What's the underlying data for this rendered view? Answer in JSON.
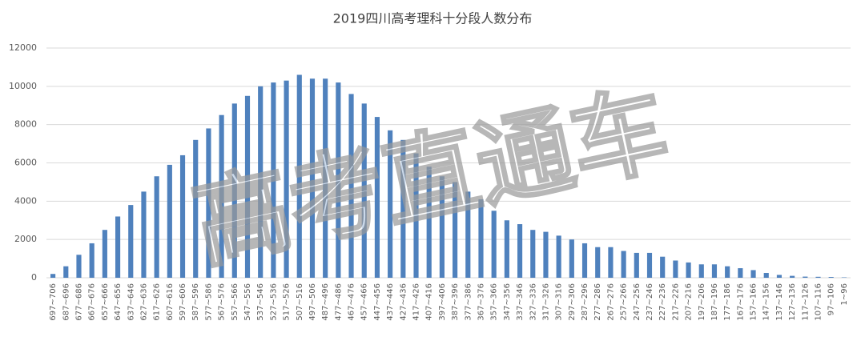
{
  "chart_data": {
    "type": "bar",
    "title": "2019四川高考理科十分段人数分布",
    "watermark": "高考直通车",
    "categories": [
      "697~706",
      "687~696",
      "677~686",
      "667~676",
      "657~666",
      "647~656",
      "637~646",
      "627~636",
      "617~626",
      "607~616",
      "597~606",
      "587~596",
      "577~586",
      "567~576",
      "557~566",
      "547~556",
      "537~546",
      "527~536",
      "517~526",
      "507~516",
      "497~506",
      "487~496",
      "477~486",
      "467~476",
      "457~466",
      "447~456",
      "437~446",
      "427~436",
      "417~426",
      "407~416",
      "397~406",
      "387~396",
      "377~386",
      "367~376",
      "357~366",
      "347~356",
      "337~346",
      "327~336",
      "317~326",
      "307~316",
      "297~306",
      "287~296",
      "277~286",
      "267~276",
      "257~266",
      "247~256",
      "237~246",
      "227~236",
      "217~226",
      "207~216",
      "197~206",
      "187~196",
      "177~186",
      "167~176",
      "157~166",
      "147~156",
      "137~146",
      "127~136",
      "117~126",
      "107~116",
      "97~106",
      "1~96"
    ],
    "values": [
      200,
      600,
      1200,
      1800,
      2500,
      3200,
      3800,
      4500,
      5300,
      5900,
      6400,
      7200,
      7800,
      8500,
      9100,
      9500,
      10000,
      10200,
      10300,
      10600,
      10400,
      10400,
      10200,
      9600,
      9100,
      8400,
      7700,
      7200,
      6500,
      5800,
      5300,
      5000,
      4500,
      4100,
      3500,
      3000,
      2800,
      2500,
      2400,
      2200,
      2000,
      1800,
      1600,
      1600,
      1400,
      1300,
      1300,
      1100,
      900,
      800,
      700,
      700,
      600,
      500,
      400,
      250,
      150,
      100,
      60,
      50,
      40,
      20
    ],
    "color": "#4f81bd",
    "ylim": [
      0,
      12000
    ],
    "yticks": [
      0,
      2000,
      4000,
      6000,
      8000,
      10000,
      12000
    ],
    "grid": true
  }
}
